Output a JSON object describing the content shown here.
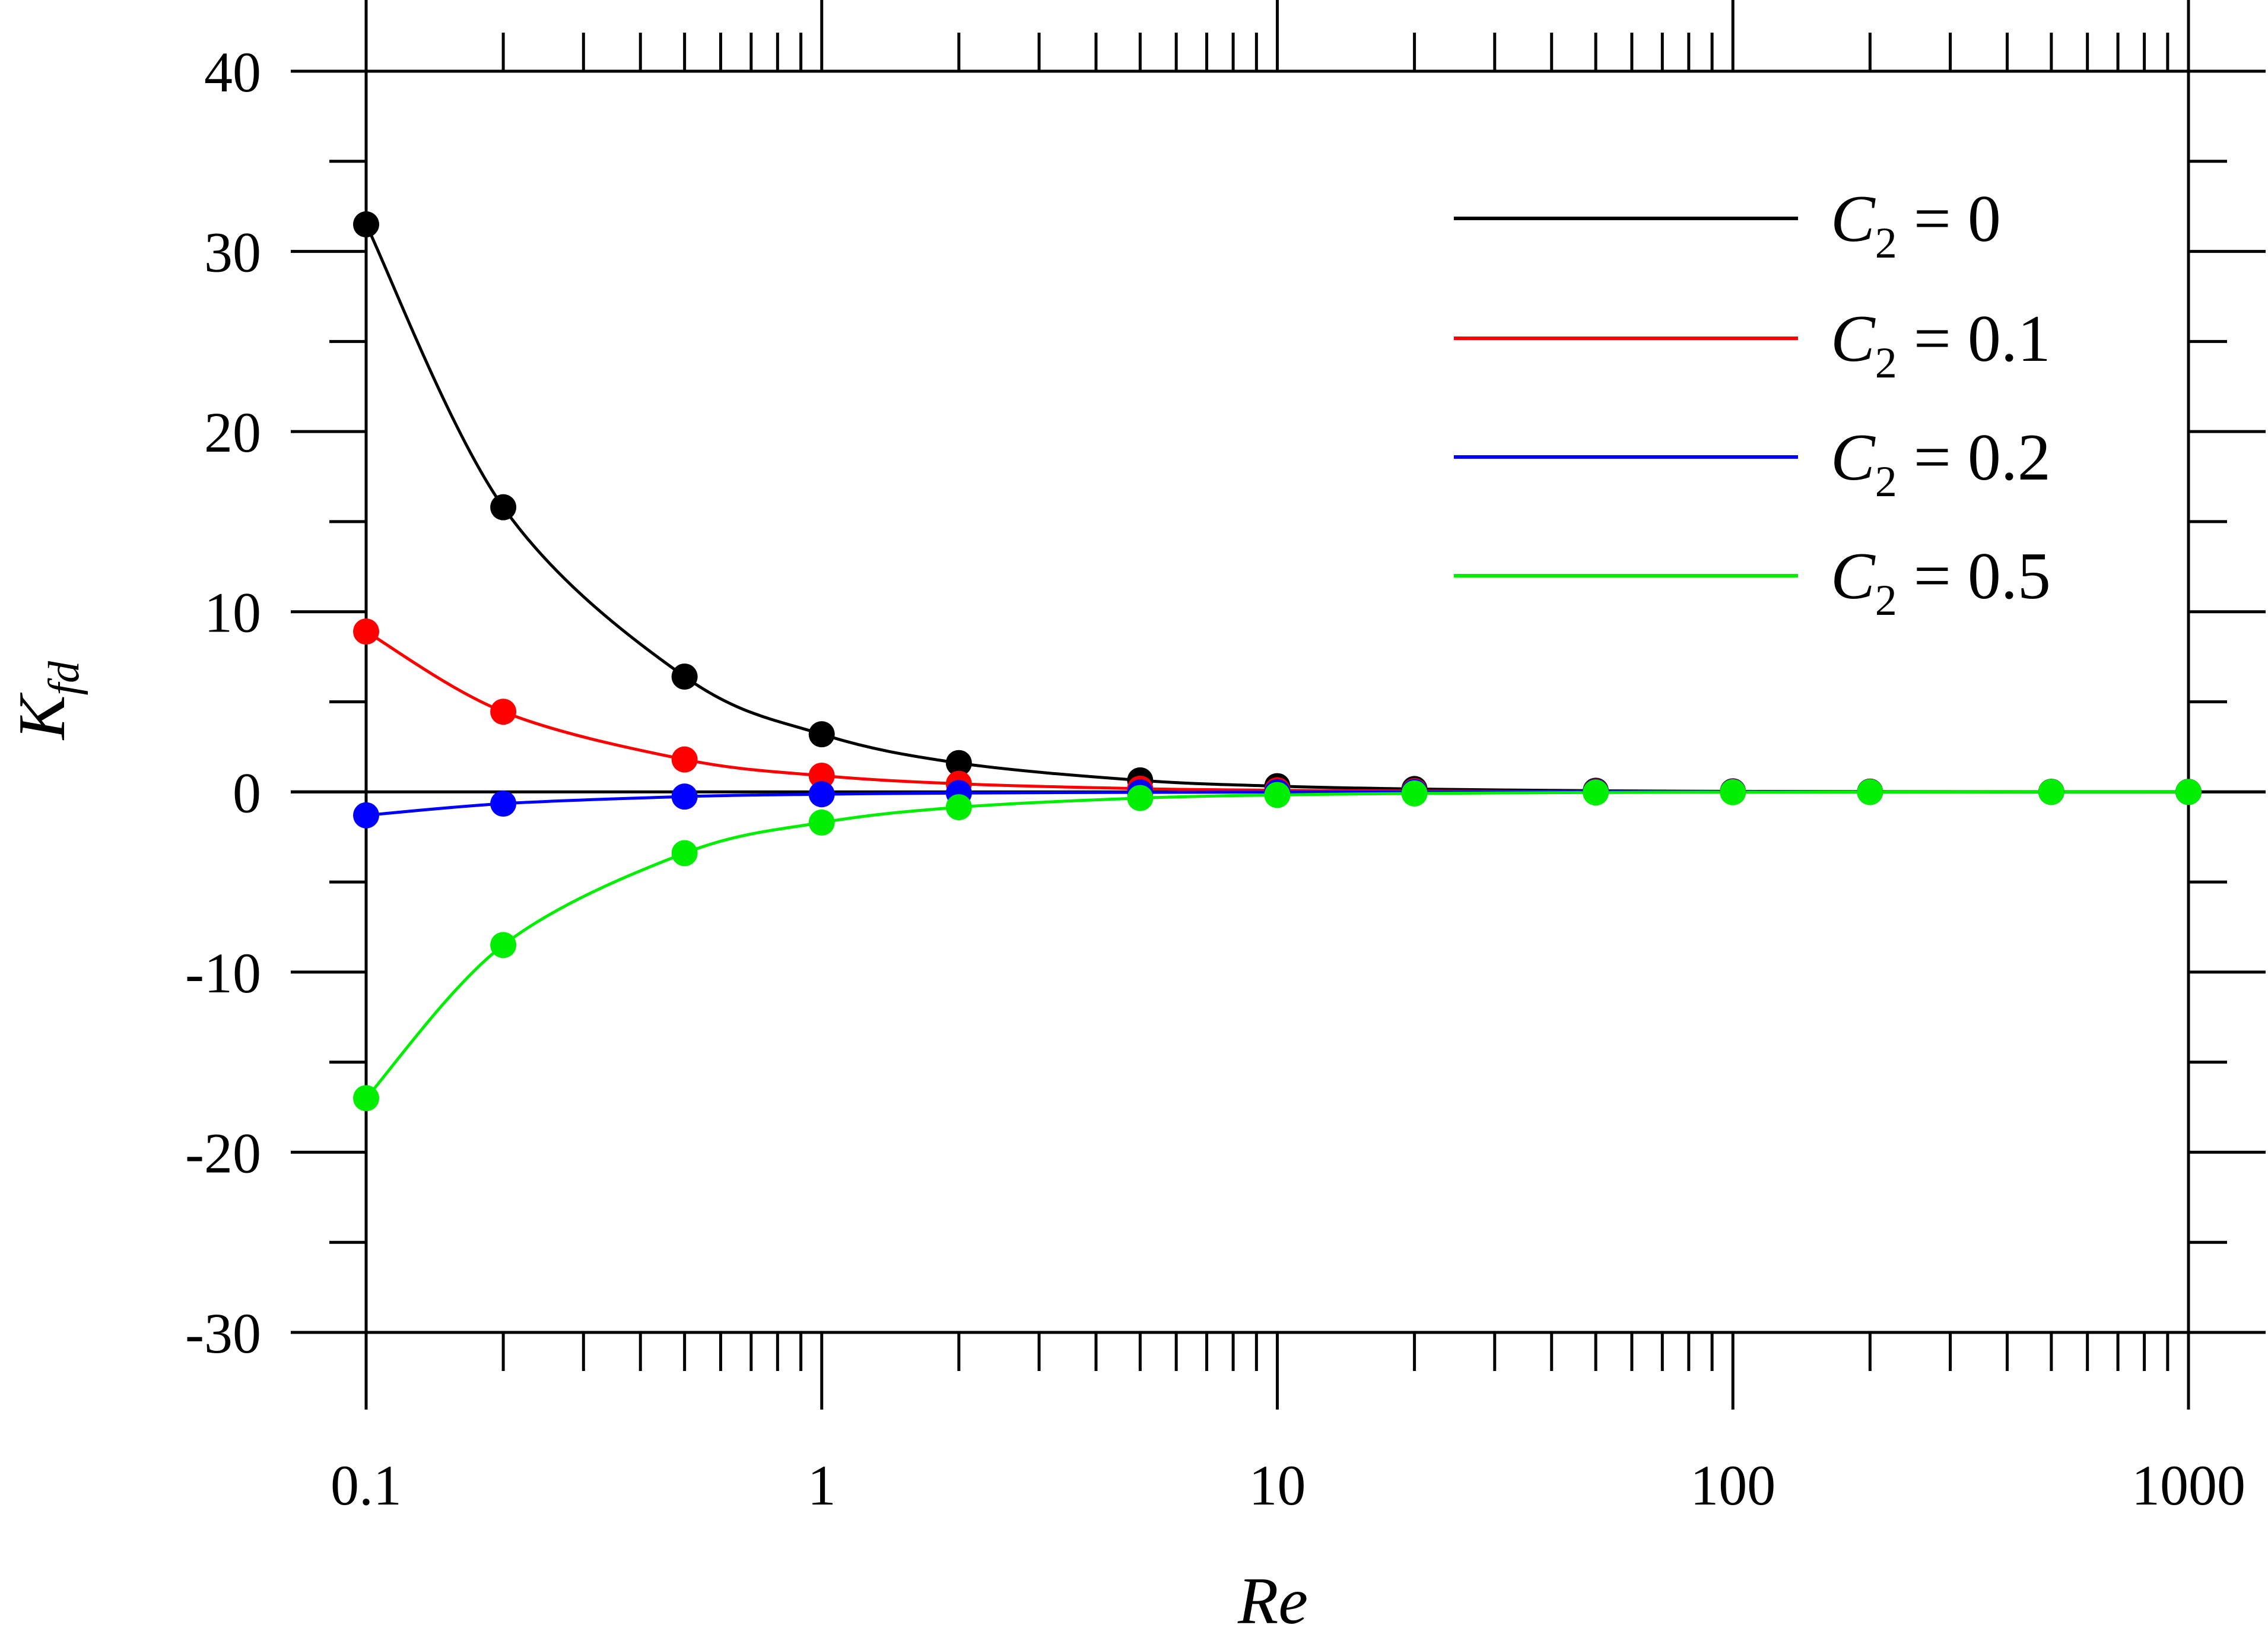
{
  "chart_data": {
    "type": "line",
    "x_scale": "log",
    "xlabel": "Re",
    "ylabel_main": "K",
    "ylabel_sub": "fd",
    "xlim": [
      0.1,
      1000
    ],
    "ylim": [
      -30,
      40
    ],
    "x_ticks": [
      0.1,
      1,
      10,
      100,
      1000
    ],
    "x_tick_labels": [
      "0.1",
      "1",
      "10",
      "100",
      "1000"
    ],
    "y_ticks": [
      -30,
      -20,
      -10,
      0,
      10,
      20,
      30,
      40
    ],
    "y_tick_labels": [
      "-30",
      "-20",
      "-10",
      "0",
      "10",
      "20",
      "30",
      "40"
    ],
    "grid": false,
    "legend_position": "top-right",
    "legend_prefix": "C",
    "legend_sub": "2",
    "legend_eq": " = ",
    "x": [
      0.1,
      0.2,
      0.5,
      1,
      2,
      5,
      10,
      20,
      50,
      100,
      200,
      500,
      1000
    ],
    "series": [
      {
        "name": "C2 = 0",
        "legend_value": "0",
        "color": "#000000",
        "values": [
          31.5,
          15.8,
          6.4,
          3.2,
          1.6,
          0.64,
          0.32,
          0.16,
          0.064,
          0.032,
          0.016,
          0.006,
          0.003
        ]
      },
      {
        "name": "C2 = 0.1",
        "legend_value": "0.1",
        "color": "#ff0000",
        "values": [
          8.9,
          4.45,
          1.8,
          0.9,
          0.45,
          0.18,
          0.09,
          0.045,
          0.018,
          0.009,
          0.0045,
          0.002,
          0.001
        ]
      },
      {
        "name": "C2 = 0.2",
        "legend_value": "0.2",
        "color": "#0000ff",
        "values": [
          -1.3,
          -0.65,
          -0.26,
          -0.13,
          -0.065,
          -0.026,
          -0.013,
          -0.006,
          -0.003,
          -0.001,
          -0.001,
          0,
          0
        ]
      },
      {
        "name": "C2 = 0.5",
        "legend_value": "0.5",
        "color": "#00ee00",
        "values": [
          -17.0,
          -8.5,
          -3.4,
          -1.7,
          -0.85,
          -0.34,
          -0.17,
          -0.085,
          -0.034,
          -0.017,
          -0.0085,
          -0.0034,
          -0.0017
        ]
      }
    ]
  }
}
